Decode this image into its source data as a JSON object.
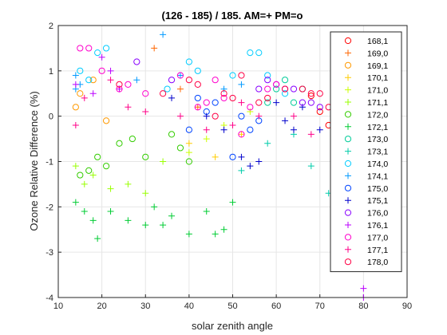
{
  "chart_data": {
    "type": "scatter",
    "title": "(126 - 185) / 185.  AM=+ PM=o",
    "xlabel": "solar zenith angle",
    "ylabel": "Ozone Relative Difference (%)",
    "xlim": [
      10,
      90
    ],
    "ylim": [
      -4,
      2
    ],
    "xticks": [
      "10",
      "20",
      "30",
      "40",
      "50",
      "60",
      "70",
      "80",
      "90"
    ],
    "yticks": [
      "-4",
      "-3",
      "-2",
      "-1",
      "0",
      "1",
      "2"
    ],
    "grid": true,
    "legend_position": "top-right",
    "series": [
      {
        "name": "168,1",
        "marker": "o",
        "color": "#ff0000",
        "points": [
          [
            68,
            0.45
          ],
          [
            70,
            0.1
          ],
          [
            72,
            -0.2
          ],
          [
            74,
            -0.1
          ]
        ]
      },
      {
        "name": "169,0",
        "marker": "+",
        "color": "#ff6600",
        "points": [
          [
            32,
            1.5
          ],
          [
            38,
            0.6
          ],
          [
            42,
            0.2
          ]
        ]
      },
      {
        "name": "169,1",
        "marker": "o",
        "color": "#ff9900",
        "points": [
          [
            14,
            0.2
          ],
          [
            15,
            0.5
          ],
          [
            18,
            0.8
          ],
          [
            21,
            -0.1
          ]
        ]
      },
      {
        "name": "170,1",
        "marker": "+",
        "color": "#ffcc00",
        "points": [
          [
            40,
            -0.6
          ],
          [
            46,
            -0.9
          ],
          [
            52,
            -0.4
          ]
        ]
      },
      {
        "name": "171,0",
        "marker": "+",
        "color": "#ccff00",
        "points": [
          [
            40,
            -0.8
          ],
          [
            44,
            -0.5
          ],
          [
            48,
            -0.2
          ],
          [
            54,
            0.1
          ]
        ]
      },
      {
        "name": "171,1",
        "marker": "+",
        "color": "#99ff00",
        "points": [
          [
            14,
            -1.1
          ],
          [
            16,
            -1.5
          ],
          [
            18,
            -1.3
          ],
          [
            22,
            -1.6
          ],
          [
            26,
            -1.5
          ],
          [
            30,
            -1.7
          ],
          [
            34,
            -1.0
          ]
        ]
      },
      {
        "name": "172,0",
        "marker": "o",
        "color": "#33cc00",
        "points": [
          [
            15,
            -1.3
          ],
          [
            17,
            -1.2
          ],
          [
            19,
            -0.9
          ],
          [
            21,
            -1.1
          ],
          [
            24,
            -0.6
          ],
          [
            27,
            -0.5
          ],
          [
            30,
            -0.9
          ],
          [
            36,
            -0.4
          ],
          [
            38,
            -0.7
          ],
          [
            40,
            -1.0
          ]
        ]
      },
      {
        "name": "172,1",
        "marker": "+",
        "color": "#00cc33",
        "points": [
          [
            14,
            -1.9
          ],
          [
            16,
            -2.1
          ],
          [
            18,
            -2.3
          ],
          [
            19,
            -2.7
          ],
          [
            22,
            -2.1
          ],
          [
            26,
            -2.3
          ],
          [
            30,
            -2.4
          ],
          [
            32,
            -2.0
          ],
          [
            34,
            -2.4
          ],
          [
            36,
            -2.2
          ],
          [
            40,
            -2.6
          ],
          [
            44,
            -2.1
          ],
          [
            46,
            -2.6
          ],
          [
            48,
            -2.5
          ],
          [
            50,
            -1.9
          ]
        ]
      },
      {
        "name": "173,0",
        "marker": "o",
        "color": "#00cc99",
        "points": [
          [
            58,
            0.3
          ],
          [
            60,
            0.6
          ],
          [
            62,
            0.8
          ],
          [
            64,
            0.3
          ],
          [
            66,
            0.6
          ]
        ]
      },
      {
        "name": "173,1",
        "marker": "+",
        "color": "#00ccaa",
        "points": [
          [
            52,
            -1.2
          ],
          [
            58,
            -0.6
          ],
          [
            64,
            -0.4
          ],
          [
            68,
            -1.1
          ],
          [
            72,
            -1.7
          ],
          [
            74,
            -0.9
          ]
        ]
      },
      {
        "name": "174,0",
        "marker": "o",
        "color": "#00ccff",
        "points": [
          [
            15,
            1.0
          ],
          [
            17,
            0.8
          ],
          [
            19,
            1.4
          ],
          [
            21,
            1.5
          ],
          [
            35,
            0.6
          ],
          [
            40,
            1.2
          ],
          [
            42,
            1.0
          ],
          [
            50,
            0.9
          ],
          [
            54,
            1.4
          ],
          [
            56,
            1.4
          ],
          [
            58,
            0.9
          ],
          [
            62,
            0.5
          ]
        ]
      },
      {
        "name": "174,1",
        "marker": "+",
        "color": "#0099ff",
        "points": [
          [
            14,
            0.9
          ],
          [
            14,
            0.6
          ],
          [
            15,
            0.7
          ],
          [
            28,
            0.8
          ],
          [
            34,
            1.8
          ],
          [
            38,
            0.9
          ],
          [
            48,
            0.6
          ],
          [
            52,
            0.7
          ]
        ]
      },
      {
        "name": "175,0",
        "marker": "o",
        "color": "#0044ff",
        "points": [
          [
            40,
            -0.3
          ],
          [
            42,
            0.4
          ],
          [
            44,
            0.1
          ],
          [
            46,
            0.3
          ],
          [
            50,
            -0.9
          ],
          [
            52,
            0.0
          ],
          [
            54,
            -0.3
          ],
          [
            56,
            -0.1
          ]
        ]
      },
      {
        "name": "175,1",
        "marker": "+",
        "color": "#0000cc",
        "points": [
          [
            36,
            0.4
          ],
          [
            44,
            0.0
          ],
          [
            48,
            -0.3
          ],
          [
            52,
            -0.9
          ],
          [
            54,
            -1.1
          ],
          [
            56,
            -1.0
          ],
          [
            60,
            0.3
          ],
          [
            62,
            -0.1
          ],
          [
            64,
            -0.3
          ],
          [
            66,
            0.2
          ],
          [
            70,
            -0.3
          ]
        ]
      },
      {
        "name": "176,0",
        "marker": "o",
        "color": "#8800ff",
        "points": [
          [
            28,
            1.2
          ],
          [
            36,
            0.8
          ],
          [
            56,
            0.6
          ],
          [
            58,
            0.8
          ],
          [
            60,
            0.7
          ],
          [
            62,
            0.6
          ],
          [
            64,
            0.6
          ],
          [
            66,
            0.3
          ],
          [
            68,
            0.3
          ],
          [
            70,
            0.2
          ]
        ]
      },
      {
        "name": "176,1",
        "marker": "+",
        "color": "#bb00ff",
        "points": [
          [
            14,
            0.7
          ],
          [
            18,
            0.5
          ],
          [
            20,
            1.3
          ],
          [
            22,
            1.0
          ],
          [
            24,
            0.6
          ],
          [
            80,
            -4.0
          ],
          [
            80,
            -3.8
          ]
        ]
      },
      {
        "name": "177,0",
        "marker": "o",
        "color": "#ff00cc",
        "points": [
          [
            15,
            1.5
          ],
          [
            17,
            1.5
          ],
          [
            20,
            1.0
          ],
          [
            24,
            0.6
          ],
          [
            26,
            0.7
          ],
          [
            30,
            0.5
          ],
          [
            38,
            0.9
          ],
          [
            42,
            0.2
          ],
          [
            44,
            0.3
          ],
          [
            46,
            0.8
          ],
          [
            48,
            0.4
          ],
          [
            52,
            -0.4
          ],
          [
            54,
            0.2
          ],
          [
            58,
            0.6
          ],
          [
            60,
            0.7
          ]
        ]
      },
      {
        "name": "177,1",
        "marker": "+",
        "color": "#ff0088",
        "points": [
          [
            14,
            -0.2
          ],
          [
            16,
            0.4
          ],
          [
            22,
            0.8
          ],
          [
            26,
            0.2
          ],
          [
            30,
            0.1
          ],
          [
            38,
            0.0
          ],
          [
            44,
            -0.3
          ],
          [
            50,
            -0.2
          ],
          [
            52,
            0.3
          ],
          [
            56,
            0.0
          ],
          [
            64,
            0.0
          ],
          [
            68,
            -0.4
          ]
        ]
      },
      {
        "name": "178,0",
        "marker": "o",
        "color": "#ff0044",
        "points": [
          [
            24,
            0.7
          ],
          [
            34,
            0.5
          ],
          [
            40,
            0.8
          ],
          [
            42,
            0.7
          ],
          [
            46,
            0.0
          ],
          [
            48,
            0.5
          ],
          [
            50,
            0.4
          ],
          [
            52,
            0.9
          ],
          [
            56,
            0.3
          ],
          [
            58,
            0.4
          ],
          [
            62,
            0.6
          ],
          [
            66,
            0.6
          ],
          [
            68,
            0.5
          ],
          [
            70,
            0.5
          ],
          [
            72,
            0.2
          ]
        ]
      }
    ]
  }
}
